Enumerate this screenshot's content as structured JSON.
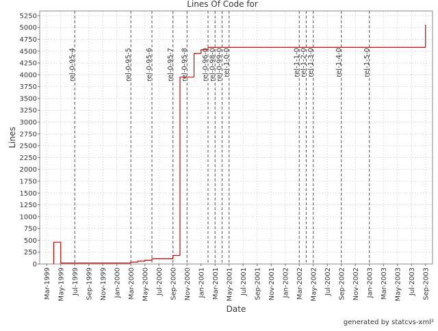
{
  "chart_data": {
    "type": "step",
    "title": "Lines Of Code for",
    "x_label": "Date",
    "y_label": "Lines",
    "footer": "generated by statcvs-xml²",
    "x": [
      "1999-04",
      "1999-05",
      "2000-03",
      "2000-04",
      "2000-05",
      "2000-06",
      "2000-09",
      "2000-10",
      "2000-12",
      "2001-01",
      "2001-02",
      "2003-09"
    ],
    "series": [
      {
        "name": "Lines",
        "color": "#c00000",
        "values": [
          460,
          20,
          40,
          60,
          80,
          110,
          180,
          3950,
          4450,
          4530,
          4580,
          5060
        ]
      }
    ],
    "markers": [
      {
        "x": "1999-07",
        "label": "rel-0-95-4"
      },
      {
        "x": "2000-03",
        "label": "rel-0-95-5"
      },
      {
        "x": "2000-06",
        "label": "rel-0-95-6"
      },
      {
        "x": "2000-09",
        "label": "rel-0-95-7"
      },
      {
        "x": "2000-11",
        "label": "rel-0-95-8"
      },
      {
        "x": "2001-02",
        "label": "rel-0-96-0"
      },
      {
        "x": "2001-03",
        "label": "rel-0-98-0"
      },
      {
        "x": "2001-04",
        "label": "rel-0-99-0"
      },
      {
        "x": "2001-05",
        "label": "rel-1-0-0"
      },
      {
        "x": "2002-03",
        "label": "rel-1-1-0"
      },
      {
        "x": "2002-04",
        "label": "rel-1-2-0"
      },
      {
        "x": "2002-05",
        "label": "rel-1-3-0"
      },
      {
        "x": "2002-09",
        "label": "rel-1-4-0"
      },
      {
        "x": "2003-01",
        "label": "rel-1-5-0"
      }
    ],
    "xlim": [
      "1999-02",
      "2003-10"
    ],
    "xticks": [
      {
        "value": "1999-03",
        "label": "Mar-1999"
      },
      {
        "value": "1999-05",
        "label": "May-1999"
      },
      {
        "value": "1999-07",
        "label": "Jul-1999"
      },
      {
        "value": "1999-09",
        "label": "Sep-1999"
      },
      {
        "value": "1999-11",
        "label": "Nov-1999"
      },
      {
        "value": "2000-01",
        "label": "Jan-2000"
      },
      {
        "value": "2000-03",
        "label": "Mar-2000"
      },
      {
        "value": "2000-05",
        "label": "May-2000"
      },
      {
        "value": "2000-07",
        "label": "Jul-2000"
      },
      {
        "value": "2000-09",
        "label": "Sep-2000"
      },
      {
        "value": "2000-11",
        "label": "Nov-2000"
      },
      {
        "value": "2001-01",
        "label": "Jan-2001"
      },
      {
        "value": "2001-03",
        "label": "Mar-2001"
      },
      {
        "value": "2001-05",
        "label": "May-2001"
      },
      {
        "value": "2001-07",
        "label": "Jul-2001"
      },
      {
        "value": "2001-09",
        "label": "Sep-2001"
      },
      {
        "value": "2001-11",
        "label": "Nov-2001"
      },
      {
        "value": "2002-01",
        "label": "Jan-2002"
      },
      {
        "value": "2002-03",
        "label": "Mar-2002"
      },
      {
        "value": "2002-05",
        "label": "May-2002"
      },
      {
        "value": "2002-07",
        "label": "Jul-2002"
      },
      {
        "value": "2002-09",
        "label": "Sep-2002"
      },
      {
        "value": "2002-11",
        "label": "Nov-2002"
      },
      {
        "value": "2003-01",
        "label": "Jan-2003"
      },
      {
        "value": "2003-03",
        "label": "Mar-2003"
      },
      {
        "value": "2003-05",
        "label": "May-2003"
      },
      {
        "value": "2003-07",
        "label": "Jul-2003"
      },
      {
        "value": "2003-09",
        "label": "Sep-2003"
      }
    ],
    "ylim": [
      0,
      5350
    ],
    "yticks": [
      0,
      250,
      500,
      750,
      1000,
      1250,
      1500,
      1750,
      2000,
      2250,
      2500,
      2750,
      3000,
      3250,
      3500,
      3750,
      4000,
      4250,
      4500,
      4750,
      5000,
      5250
    ],
    "grid": true
  }
}
